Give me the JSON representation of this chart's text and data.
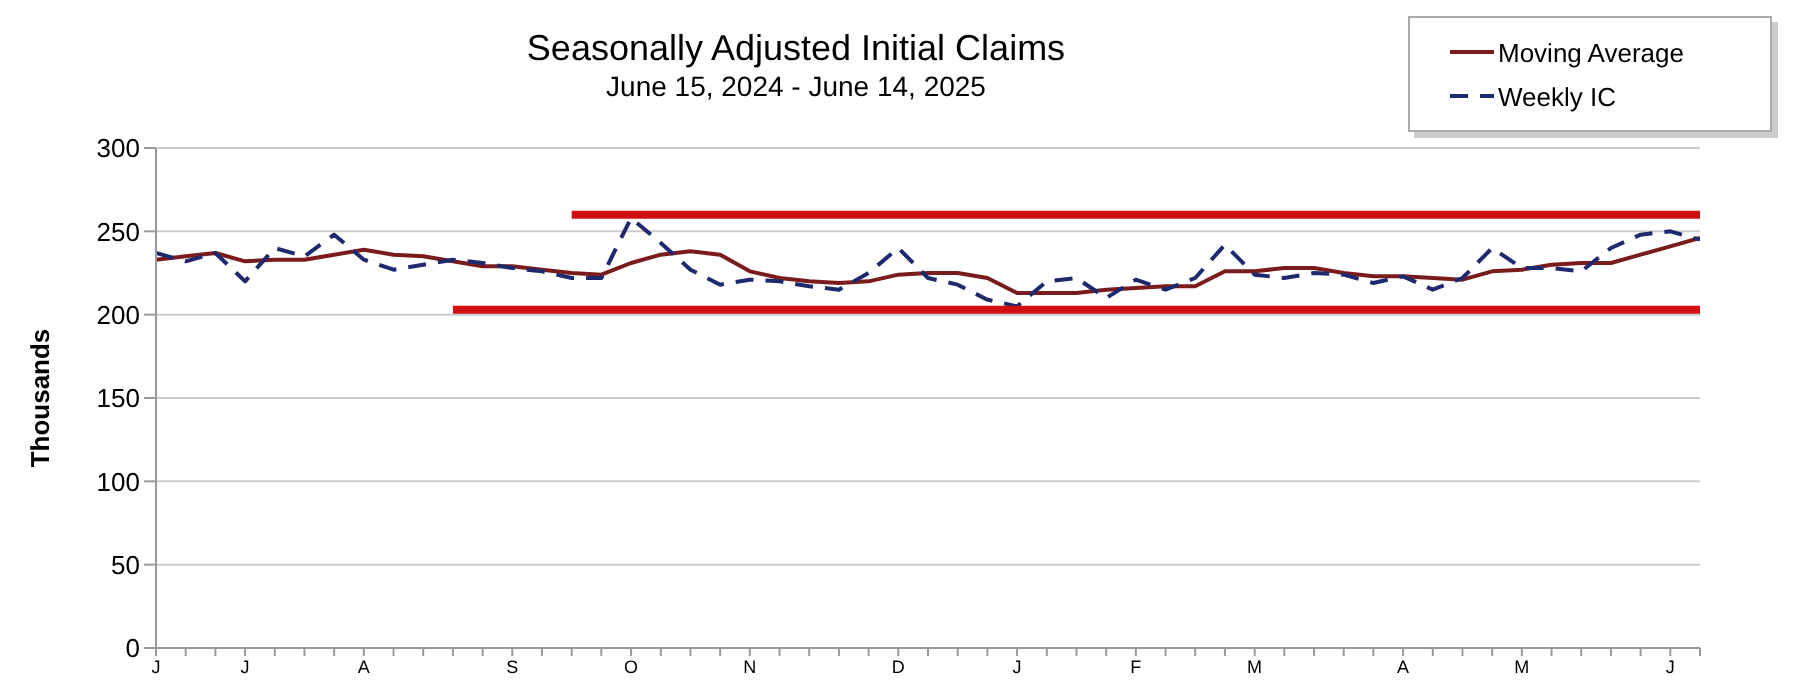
{
  "chart_data": {
    "type": "line",
    "title": "Seasonally Adjusted Initial Claims",
    "subtitle": "June 15, 2024 - June 14, 2025",
    "ylabel": "Thousands",
    "categories": [
      "J",
      null,
      null,
      "J",
      null,
      null,
      null,
      "A",
      null,
      null,
      null,
      null,
      "S",
      null,
      null,
      null,
      "O",
      null,
      null,
      null,
      "N",
      null,
      null,
      null,
      null,
      "D",
      null,
      null,
      null,
      "J",
      null,
      null,
      null,
      "F",
      null,
      null,
      null,
      "M",
      null,
      null,
      null,
      null,
      "A",
      null,
      null,
      null,
      "M",
      null,
      null,
      null,
      null,
      "J",
      null
    ],
    "series": [
      {
        "name": "Moving Average",
        "color": "#7b1c1c",
        "line_style": "solid",
        "values": [
          233,
          235,
          237,
          232,
          233,
          233,
          236,
          239,
          236,
          235,
          232,
          229,
          229,
          227,
          225,
          224,
          231,
          236,
          238,
          236,
          226,
          222,
          220,
          219,
          220,
          224,
          225,
          225,
          222,
          213,
          213,
          213,
          215,
          216,
          217,
          217,
          226,
          226,
          228,
          228,
          225,
          223,
          223,
          222,
          221,
          226,
          227,
          230,
          231,
          231,
          236,
          241,
          246
        ]
      },
      {
        "name": "Weekly IC",
        "color": "#1f2a6e",
        "line_style": "dashed",
        "values": [
          237,
          232,
          237,
          220,
          240,
          235,
          248,
          233,
          227,
          230,
          233,
          231,
          228,
          226,
          222,
          222,
          258,
          243,
          227,
          218,
          221,
          220,
          217,
          215,
          225,
          240,
          222,
          218,
          209,
          205,
          220,
          222,
          210,
          221,
          215,
          222,
          242,
          224,
          222,
          225,
          224,
          219,
          223,
          215,
          222,
          240,
          228,
          228,
          226,
          240,
          248,
          250,
          245
        ]
      },
      {
        "color": "#d01010",
        "line_style": "solid",
        "values": [
          null,
          null,
          null,
          null,
          null,
          null,
          null,
          null,
          null,
          null,
          null,
          null,
          null,
          null,
          260,
          260,
          260,
          260,
          260,
          260,
          260,
          260,
          260,
          260,
          260,
          260,
          260,
          260,
          260,
          260,
          260,
          260,
          260,
          260,
          260,
          260,
          260,
          260,
          260,
          260,
          260,
          260,
          260,
          260,
          260,
          260,
          260,
          260,
          260,
          260,
          260,
          260,
          260
        ]
      },
      {
        "color": "#d01010",
        "line_style": "solid",
        "values": [
          null,
          null,
          null,
          null,
          null,
          null,
          null,
          null,
          null,
          null,
          203,
          203,
          203,
          203,
          203,
          203,
          203,
          203,
          203,
          203,
          203,
          203,
          203,
          203,
          203,
          203,
          203,
          203,
          203,
          203,
          203,
          203,
          203,
          203,
          203,
          203,
          203,
          203,
          203,
          203,
          203,
          203,
          203,
          203,
          203,
          203,
          203,
          203,
          203,
          203,
          203,
          203,
          203
        ]
      }
    ],
    "ylim": [
      0,
      300
    ],
    "yticks": [
      0,
      50,
      100,
      150,
      200,
      250,
      300
    ],
    "grid": "y",
    "legend": "top right",
    "marker": "none"
  }
}
